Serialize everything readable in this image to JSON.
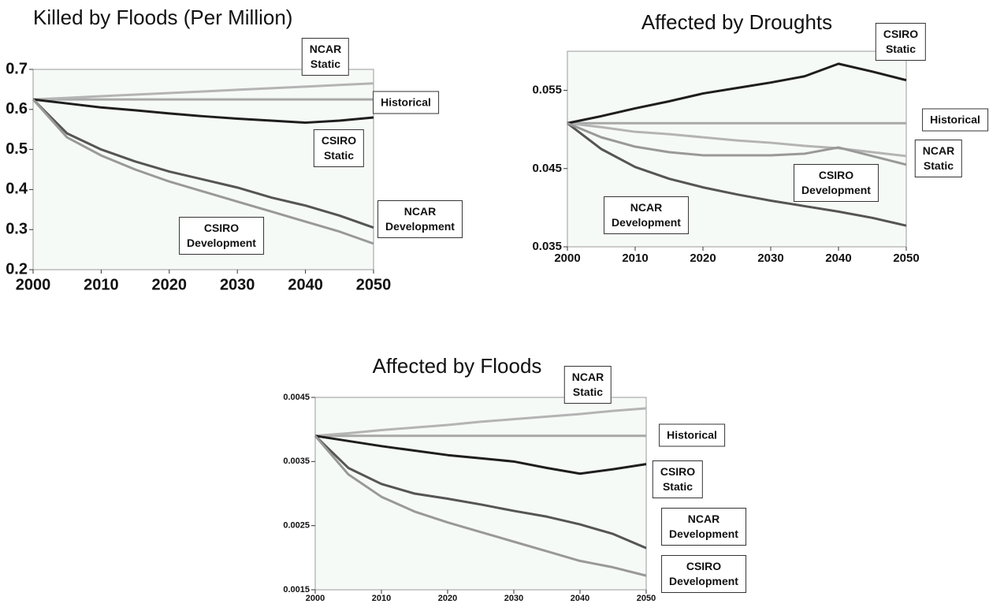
{
  "chart_data": [
    {
      "type": "line",
      "title": "Killed by Floods (Per Million)",
      "x": [
        2000,
        2005,
        2010,
        2015,
        2020,
        2025,
        2030,
        2035,
        2040,
        2045,
        2050
      ],
      "xlim": [
        2000,
        2050
      ],
      "xticks": [
        2000,
        2010,
        2020,
        2030,
        2040,
        2050
      ],
      "ylim": [
        0.2,
        0.7
      ],
      "yticks": [
        0.2,
        0.3,
        0.4,
        0.5,
        0.6,
        0.7
      ],
      "series": [
        {
          "name": "Historical",
          "color": "#a8a8a8",
          "values": [
            0.625,
            0.625,
            0.625,
            0.625,
            0.625,
            0.625,
            0.625,
            0.625,
            0.625,
            0.625,
            0.625
          ]
        },
        {
          "name": "NCAR Static",
          "color": "#b4b4b4",
          "values": [
            0.625,
            0.629,
            0.633,
            0.637,
            0.641,
            0.645,
            0.649,
            0.653,
            0.657,
            0.661,
            0.665
          ]
        },
        {
          "name": "CSIRO Static",
          "color": "#1e1e1e",
          "values": [
            0.625,
            0.615,
            0.605,
            0.598,
            0.59,
            0.583,
            0.577,
            0.572,
            0.567,
            0.572,
            0.58
          ]
        },
        {
          "name": "NCAR Development",
          "color": "#555555",
          "values": [
            0.625,
            0.54,
            0.5,
            0.47,
            0.445,
            0.425,
            0.405,
            0.38,
            0.36,
            0.335,
            0.305
          ]
        },
        {
          "name": "CSIRO Development",
          "color": "#999999",
          "values": [
            0.625,
            0.53,
            0.485,
            0.45,
            0.42,
            0.395,
            0.37,
            0.345,
            0.32,
            0.295,
            0.265
          ]
        }
      ]
    },
    {
      "type": "line",
      "title": "Affected by Droughts",
      "x": [
        2000,
        2005,
        2010,
        2015,
        2020,
        2025,
        2030,
        2035,
        2040,
        2045,
        2050
      ],
      "xlim": [
        2000,
        2050
      ],
      "xticks": [
        2000,
        2010,
        2020,
        2030,
        2040,
        2050
      ],
      "ylim": [
        0.035,
        0.06
      ],
      "yticks": [
        0.035,
        0.045,
        0.055
      ],
      "series": [
        {
          "name": "Historical",
          "color": "#a8a8a8",
          "values": [
            0.0508,
            0.0508,
            0.0508,
            0.0508,
            0.0508,
            0.0508,
            0.0508,
            0.0508,
            0.0508,
            0.0508,
            0.0508
          ]
        },
        {
          "name": "NCAR Static",
          "color": "#b4b4b4",
          "values": [
            0.0508,
            0.0503,
            0.0497,
            0.0494,
            0.049,
            0.0486,
            0.0483,
            0.0479,
            0.0476,
            0.0471,
            0.0466
          ]
        },
        {
          "name": "CSIRO Static",
          "color": "#1e1e1e",
          "values": [
            0.0508,
            0.0517,
            0.0527,
            0.0536,
            0.0546,
            0.0553,
            0.056,
            0.0568,
            0.0584,
            0.0574,
            0.0563
          ]
        },
        {
          "name": "NCAR Development",
          "color": "#555555",
          "values": [
            0.0508,
            0.0475,
            0.0452,
            0.0437,
            0.0426,
            0.0417,
            0.0409,
            0.0402,
            0.0395,
            0.0387,
            0.0377
          ]
        },
        {
          "name": "CSIRO Development",
          "color": "#999999",
          "values": [
            0.0508,
            0.049,
            0.0478,
            0.0471,
            0.0467,
            0.0467,
            0.0467,
            0.0469,
            0.0477,
            0.0466,
            0.0455
          ]
        }
      ]
    },
    {
      "type": "line",
      "title": "Affected by Floods",
      "x": [
        2000,
        2005,
        2010,
        2015,
        2020,
        2025,
        2030,
        2035,
        2040,
        2045,
        2050
      ],
      "xlim": [
        2000,
        2050
      ],
      "xticks": [
        2000,
        2010,
        2020,
        2030,
        2040,
        2050
      ],
      "ylim": [
        0.0015,
        0.0045
      ],
      "yticks": [
        0.0015,
        0.0025,
        0.0035,
        0.0045
      ],
      "series": [
        {
          "name": "Historical",
          "color": "#a8a8a8",
          "values": [
            0.0039,
            0.0039,
            0.0039,
            0.0039,
            0.0039,
            0.0039,
            0.0039,
            0.0039,
            0.0039,
            0.0039,
            0.0039
          ]
        },
        {
          "name": "NCAR Static",
          "color": "#b4b4b4",
          "values": [
            0.0039,
            0.00394,
            0.00399,
            0.00403,
            0.00407,
            0.00412,
            0.00416,
            0.0042,
            0.00424,
            0.00429,
            0.00433
          ]
        },
        {
          "name": "CSIRO Static",
          "color": "#1e1e1e",
          "values": [
            0.0039,
            0.00382,
            0.00374,
            0.00367,
            0.0036,
            0.00355,
            0.0035,
            0.0034,
            0.00331,
            0.00338,
            0.00346
          ]
        },
        {
          "name": "NCAR Development",
          "color": "#555555",
          "values": [
            0.0039,
            0.0034,
            0.00315,
            0.003,
            0.00292,
            0.00283,
            0.00273,
            0.00264,
            0.00252,
            0.00237,
            0.00215
          ]
        },
        {
          "name": "CSIRO Development",
          "color": "#999999",
          "values": [
            0.0039,
            0.0033,
            0.00295,
            0.00272,
            0.00255,
            0.0024,
            0.00225,
            0.0021,
            0.00195,
            0.00185,
            0.00172
          ]
        }
      ]
    }
  ]
}
